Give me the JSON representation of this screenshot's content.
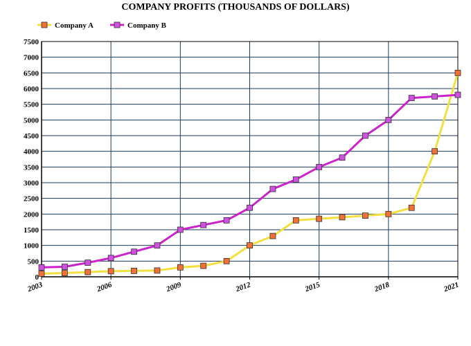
{
  "chart_data": {
    "type": "line",
    "title": "COMPANY PROFITS (THOUSANDS OF DOLLARS)",
    "xlabel": "",
    "ylabel": "",
    "x": [
      2003,
      2004,
      2005,
      2006,
      2007,
      2008,
      2009,
      2010,
      2011,
      2012,
      2013,
      2014,
      2015,
      2016,
      2017,
      2018,
      2019,
      2020,
      2021
    ],
    "x_ticks": [
      "2003",
      "2006",
      "2009",
      "2012",
      "2015",
      "2018",
      "2021"
    ],
    "y_ticks": [
      "0",
      "500",
      "1000",
      "1500",
      "2000",
      "2500",
      "3000",
      "3500",
      "4000",
      "4500",
      "5000",
      "5500",
      "6000",
      "6500",
      "7000",
      "7500"
    ],
    "xlim": [
      2003,
      2021
    ],
    "ylim": [
      0,
      7500
    ],
    "grid": true,
    "legend_position": "top-left",
    "series": [
      {
        "name": "Company A",
        "line_color": "#f2e040",
        "marker_color": "#f07038",
        "values": [
          100,
          120,
          150,
          180,
          190,
          200,
          300,
          350,
          500,
          1000,
          1300,
          1800,
          1850,
          1900,
          1950,
          2000,
          2200,
          4000,
          6500
        ]
      },
      {
        "name": "Company B",
        "line_color": "#cc22cc",
        "marker_color": "#d050e0",
        "values": [
          300,
          320,
          450,
          600,
          800,
          1000,
          1500,
          1650,
          1800,
          2200,
          2800,
          3100,
          3500,
          3800,
          4500,
          5000,
          5700,
          5750,
          5800
        ]
      }
    ],
    "colors": {
      "plot_background": "#ffffff",
      "grid": "#1a3a5c",
      "axis": "#000000"
    }
  }
}
